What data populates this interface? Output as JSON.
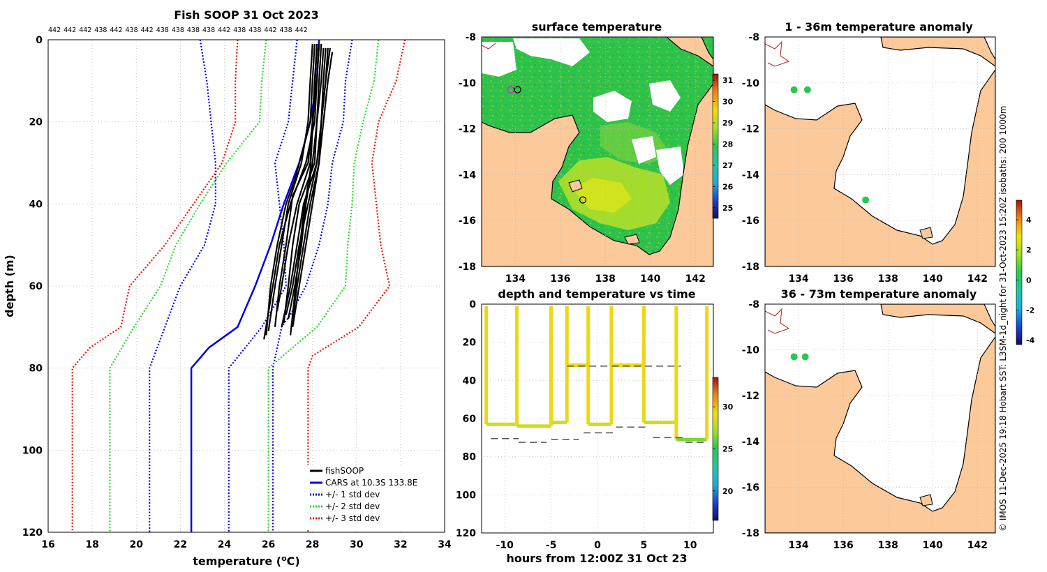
{
  "footer_text": "© IMOS 11-Dec-2025 19:18 Hobart SST: L3SM-1d_night for 31-Oct-2023 15:20Z isobaths: 200  1000m",
  "colors": {
    "fish": "#000000",
    "cars": "#0000e6",
    "std1": "#0000e6",
    "std2": "#22dd22",
    "std3": "#ee1100",
    "land": "#fbc99a",
    "grid": "#b8b8b8",
    "dash": "#555555",
    "isobath": "#b02020"
  },
  "chart_data": [
    {
      "id": "profile",
      "type": "line",
      "title": "Fish SOOP 31 Oct 2023",
      "xlabel": "temperature (°C)",
      "xlabel_base": "temperature (",
      "xlabel_sup": "o",
      "xlabel_tail": "C)",
      "ylabel": "depth (m)",
      "xlim": [
        16,
        34
      ],
      "ylim": [
        120,
        0
      ],
      "xticks": [
        16,
        18,
        20,
        22,
        24,
        26,
        28,
        30,
        32,
        34
      ],
      "yticks": [
        0,
        20,
        40,
        60,
        80,
        100,
        120
      ],
      "top_labels": [
        "442",
        "442",
        "442",
        "438",
        "442",
        "438",
        "442",
        "438",
        "438",
        "438",
        "438",
        "442",
        "438",
        "438",
        "442",
        "438",
        "442"
      ],
      "legend": [
        "fishSOOP",
        "CARS at 10.3S 133.8E",
        "+/- 1 std dev",
        "+/- 2 std dev",
        "+/- 3 std dev"
      ],
      "series": [
        {
          "name": "CARS at 10.3S 133.8E",
          "style": "cars",
          "x": [
            28.3,
            28.2,
            27.9,
            27.4,
            26.7,
            26.1,
            25.4,
            24.6,
            23.3,
            22.5,
            22.5
          ],
          "y": [
            0,
            10,
            20,
            30,
            40,
            50,
            60,
            70,
            75,
            80,
            120
          ]
        },
        {
          "name": "+/- 1 std dev",
          "style": "std1",
          "x": [
            27.3,
            27.1,
            26.9,
            26.3,
            26.5,
            26.7,
            26.8,
            25.7,
            24.2,
            24.2
          ],
          "y": [
            0,
            10,
            20,
            30,
            40,
            50,
            60,
            70,
            80,
            120
          ]
        },
        {
          "name": "+/- 1 std dev",
          "style": "std1",
          "x": [
            29.8,
            29.5,
            29.4,
            28.9,
            28.7,
            28.3,
            27.7,
            27.0,
            26.6,
            26.2,
            26.2
          ],
          "y": [
            0,
            10,
            20,
            30,
            40,
            50,
            60,
            67,
            70,
            80,
            120
          ]
        },
        {
          "name": "+/- 1 std dev",
          "style": "std1",
          "x": [
            22.9,
            23.2,
            23.4,
            23.6,
            23.6,
            23.1,
            22.0,
            20.6,
            20.6
          ],
          "y": [
            0,
            10,
            20,
            30,
            40,
            50,
            60,
            80,
            120
          ]
        },
        {
          "name": "+/- 2 std dev",
          "style": "std2",
          "x": [
            25.9,
            25.7,
            25.6,
            24.1,
            22.9,
            21.8,
            21.1,
            19.9,
            18.8,
            18.8
          ],
          "y": [
            0,
            10,
            20,
            30,
            40,
            50,
            60,
            70,
            80,
            120
          ]
        },
        {
          "name": "+/- 2 std dev",
          "style": "std2",
          "x": [
            31.0,
            30.8,
            30.3,
            29.9,
            29.8,
            29.6,
            29.5,
            28.2,
            26.0,
            26.0
          ],
          "y": [
            0,
            10,
            20,
            30,
            40,
            50,
            60,
            70,
            80,
            120
          ]
        },
        {
          "name": "+/- 3 std dev",
          "style": "std3",
          "x": [
            24.6,
            24.5,
            24.5,
            23.9,
            22.6,
            21.3,
            19.7,
            19.3,
            17.9,
            17.1,
            17.1
          ],
          "y": [
            0,
            10,
            20,
            30,
            40,
            50,
            60,
            70,
            75,
            80,
            120
          ]
        },
        {
          "name": "+/- 3 std dev",
          "style": "std3",
          "x": [
            32.2,
            31.8,
            31.0,
            30.7,
            30.9,
            31.1,
            31.5,
            30.1,
            28.0,
            27.8,
            27.8
          ],
          "y": [
            0,
            10,
            20,
            30,
            40,
            50,
            60,
            70,
            77,
            80,
            120
          ]
        }
      ],
      "fish_profiles": [
        {
          "x": [
            28.2,
            28.1,
            28.0,
            27.9,
            27.6,
            27.4,
            27.2,
            27.0
          ],
          "y": [
            2,
            12,
            22,
            32,
            42,
            52,
            62,
            72
          ]
        },
        {
          "x": [
            28.4,
            28.3,
            28.2,
            28.0,
            27.7,
            27.5,
            27.2,
            26.9
          ],
          "y": [
            1,
            10,
            20,
            30,
            40,
            50,
            60,
            68
          ]
        },
        {
          "x": [
            28.6,
            28.5,
            28.4,
            28.3,
            28.0,
            27.7,
            27.4,
            27.1
          ],
          "y": [
            2,
            10,
            20,
            30,
            40,
            50,
            60,
            70
          ]
        },
        {
          "x": [
            28.1,
            28.0,
            27.9,
            27.2,
            26.8,
            26.4,
            26.1,
            25.9
          ],
          "y": [
            1,
            10,
            20,
            34,
            40,
            50,
            60,
            72
          ]
        },
        {
          "x": [
            28.3,
            28.2,
            28.0,
            27.8,
            27.1,
            26.8,
            26.5,
            26.3
          ],
          "y": [
            1,
            10,
            20,
            30,
            38,
            50,
            60,
            70
          ]
        },
        {
          "x": [
            28.9,
            28.7,
            28.5,
            28.3,
            27.9,
            27.6,
            27.3,
            27.1
          ],
          "y": [
            3,
            10,
            20,
            30,
            40,
            50,
            60,
            68
          ]
        },
        {
          "x": [
            28.5,
            28.4,
            28.2,
            28.1,
            27.4,
            27.1,
            26.9,
            26.7
          ],
          "y": [
            2,
            10,
            20,
            30,
            40,
            50,
            60,
            69
          ]
        },
        {
          "x": [
            28.0,
            27.9,
            27.8,
            27.5,
            26.9,
            26.6,
            26.3,
            26.0
          ],
          "y": [
            1,
            10,
            20,
            30,
            40,
            50,
            60,
            71
          ]
        },
        {
          "x": [
            28.7,
            28.6,
            28.4,
            28.2,
            27.6,
            27.3,
            27.0,
            26.6
          ],
          "y": [
            2,
            10,
            20,
            30,
            40,
            50,
            60,
            70
          ]
        },
        {
          "x": [
            28.2,
            28.1,
            28.0,
            27.9,
            27.3,
            26.9,
            26.6,
            26.4
          ],
          "y": [
            1,
            10,
            20,
            30,
            40,
            50,
            60,
            66
          ]
        },
        {
          "x": [
            28.8,
            28.6,
            28.4,
            28.2,
            27.8,
            27.4,
            27.1,
            26.8
          ],
          "y": [
            2,
            10,
            20,
            30,
            40,
            50,
            60,
            67
          ]
        },
        {
          "x": [
            28.3,
            28.2,
            28.1,
            27.7,
            27.0,
            26.5,
            26.2,
            25.8
          ],
          "y": [
            1,
            10,
            20,
            30,
            40,
            50,
            60,
            73
          ]
        }
      ]
    },
    {
      "id": "sst_map",
      "type": "heatmap",
      "title": "surface temperature",
      "xlim": [
        132.5,
        142.8
      ],
      "ylim": [
        -18,
        -8
      ],
      "xticks": [
        134,
        136,
        138,
        140,
        142
      ],
      "yticks": [
        -8,
        -10,
        -12,
        -14,
        -16,
        -18
      ],
      "colorbar": {
        "min": 24.5,
        "max": 31.3,
        "ticks": [
          25,
          26,
          27,
          28,
          29,
          30,
          31
        ]
      },
      "markers": [
        {
          "lon": 133.8,
          "lat": -10.3
        },
        {
          "lon": 134.1,
          "lat": -10.3
        },
        {
          "lon": 137.0,
          "lat": -15.1
        }
      ]
    },
    {
      "id": "anomaly_shallow",
      "type": "heatmap",
      "title": "1 - 36m temperature anomaly",
      "xlim": [
        132.5,
        142.8
      ],
      "ylim": [
        -18,
        -8
      ],
      "xticks": [
        134,
        136,
        138,
        140,
        142
      ],
      "yticks": [
        -8,
        -10,
        -12,
        -14,
        -16,
        -18
      ],
      "points": [
        {
          "lon": 133.8,
          "lat": -10.3,
          "value": 0.1
        },
        {
          "lon": 134.4,
          "lat": -10.3,
          "value": 0.0
        },
        {
          "lon": 137.0,
          "lat": -15.1,
          "value": 0.5
        }
      ]
    },
    {
      "id": "anomaly_deep",
      "type": "heatmap",
      "title": "36 - 73m temperature anomaly",
      "xlim": [
        132.5,
        142.8
      ],
      "ylim": [
        -18,
        -8
      ],
      "xticks": [
        134,
        136,
        138,
        140,
        142
      ],
      "yticks": [
        -8,
        -10,
        -12,
        -14,
        -16,
        -18
      ],
      "colorbar": {
        "min": -4.3,
        "max": 5.3,
        "ticks": [
          -4,
          -2,
          0,
          2,
          4
        ]
      },
      "points": [
        {
          "lon": 133.8,
          "lat": -10.3,
          "value": 0.8
        },
        {
          "lon": 134.3,
          "lat": -10.3,
          "value": 0.4
        }
      ]
    },
    {
      "id": "depth_time",
      "type": "scatter",
      "title": "depth and temperature vs time",
      "xlabel": "hours from 12:00Z 31 Oct 23",
      "xlim": [
        -12.5,
        12.5
      ],
      "ylim": [
        120,
        0
      ],
      "xticks": [
        -10,
        -5,
        0,
        5,
        10
      ],
      "yticks": [
        0,
        20,
        40,
        60,
        80,
        100,
        120
      ],
      "colorbar": {
        "min": 16.5,
        "max": 33.5,
        "ticks": [
          20,
          25,
          30
        ]
      },
      "dives": [
        {
          "t0": -12.0,
          "t1": -8.7,
          "depth": 63
        },
        {
          "t0": -8.7,
          "t1": -5.0,
          "depth": 64
        },
        {
          "t0": -5.0,
          "t1": -3.3,
          "depth": 62
        },
        {
          "t0": -3.3,
          "t1": -1.0,
          "depth": 32
        },
        {
          "t0": -1.0,
          "t1": 1.5,
          "depth": 63
        },
        {
          "t0": 1.5,
          "t1": 5.0,
          "depth": 32
        },
        {
          "t0": 5.0,
          "t1": 8.5,
          "depth": 62
        },
        {
          "t0": 8.5,
          "t1": 11.8,
          "depth": 71
        }
      ],
      "bottom_dashes": [
        {
          "t0": -11.5,
          "t1": -8.5,
          "depth": 70.5
        },
        {
          "t0": -8.5,
          "t1": -5.5,
          "depth": 72.5
        },
        {
          "t0": -5.0,
          "t1": -2.0,
          "depth": 71
        },
        {
          "t0": -1.5,
          "t1": 2.0,
          "depth": 67.5
        },
        {
          "t0": 2.0,
          "t1": 5.5,
          "depth": 64.5
        },
        {
          "t0": 6.0,
          "t1": 9.5,
          "depth": 70
        },
        {
          "t0": 9.5,
          "t1": 11.8,
          "depth": 72.5
        },
        {
          "t0": -3.3,
          "t1": 9.0,
          "depth": 32.5
        }
      ]
    }
  ]
}
